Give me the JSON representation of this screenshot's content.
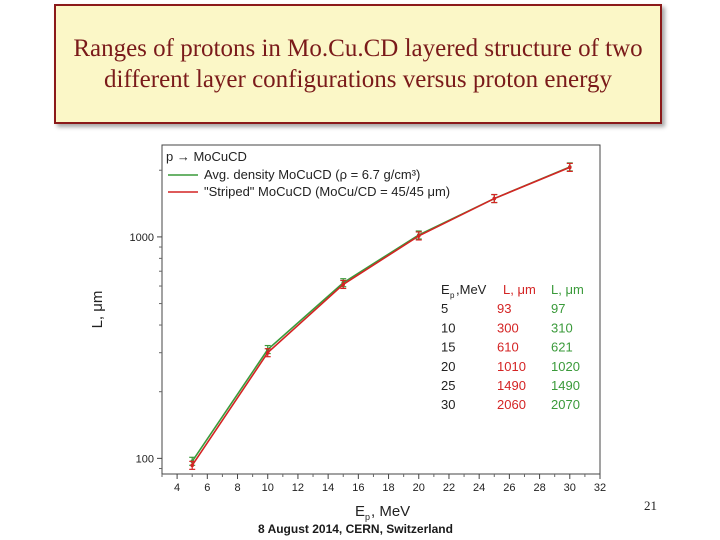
{
  "slide": {
    "title": "Ranges of protons in Mo.Cu.CD layered structure of two different layer configurations versus proton energy",
    "footer": "8 August 2014, CERN, Switzerland",
    "page_number": "21"
  },
  "chart_data": {
    "type": "line",
    "title": "p → MoCuCD",
    "xlabel": "E",
    "xlabel_sub": "p",
    "xlabel_unit": ", MeV",
    "ylabel": "L, μm",
    "yscale": "log",
    "xlim": [
      3,
      32
    ],
    "ylim": [
      85,
      2600
    ],
    "xticks": [
      4,
      6,
      8,
      10,
      12,
      14,
      16,
      18,
      20,
      22,
      24,
      26,
      28,
      30,
      32
    ],
    "yticks": [
      100,
      1000
    ],
    "series": [
      {
        "name": "Avg. density MoCuCD (ρ = 6.7 g/cm³)",
        "color": "#3a9a3a",
        "x": [
          5,
          10,
          15,
          20,
          25,
          30
        ],
        "y": [
          97,
          310,
          621,
          1020,
          1490,
          2070
        ]
      },
      {
        "name": "\"Striped\" MoCuCD (MoCu/CD = 45/45 μm)",
        "color": "#d42424",
        "x": [
          5,
          10,
          15,
          20,
          25,
          30
        ],
        "y": [
          93,
          300,
          610,
          1010,
          1490,
          2060
        ]
      }
    ],
    "legend_placement": "top-left",
    "table": {
      "headers": [
        "E",
        "L, μm",
        "L, μm"
      ],
      "header_colors": [
        "#222222",
        "#d42424",
        "#3a9a3a"
      ],
      "ep_sub": "p",
      "ep_unit": ",MeV",
      "rows": [
        [
          "5",
          "93",
          "97"
        ],
        [
          "10",
          "300",
          "310"
        ],
        [
          "15",
          "610",
          "621"
        ],
        [
          "20",
          "1010",
          "1020"
        ],
        [
          "25",
          "1490",
          "1490"
        ],
        [
          "30",
          "2060",
          "2070"
        ]
      ]
    }
  }
}
